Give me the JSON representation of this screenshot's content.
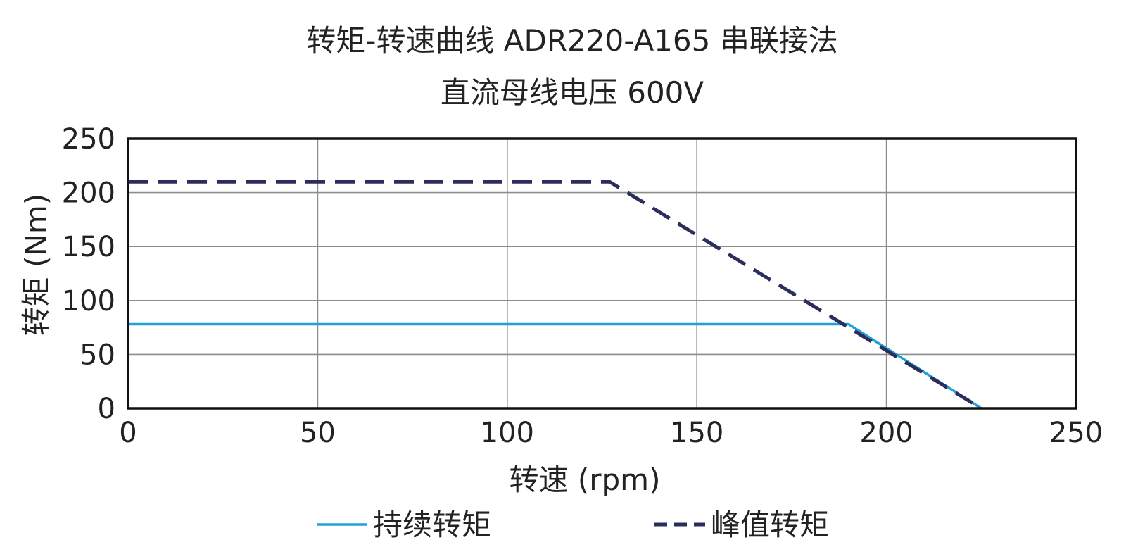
{
  "chart_data": {
    "type": "line",
    "title": "转矩-转速曲线 ADR220-A165 串联接法",
    "subtitle": "直流母线电压 600V",
    "xlabel": "转速 (rpm)",
    "ylabel": "转矩 (Nm)",
    "xlim": [
      0,
      250
    ],
    "ylim": [
      0,
      250
    ],
    "x_ticks": [
      0,
      50,
      100,
      150,
      200,
      250
    ],
    "y_ticks": [
      0,
      50,
      100,
      150,
      200,
      250
    ],
    "x_tick_labels": [
      "0",
      "50",
      "100",
      "150",
      "200",
      "250"
    ],
    "y_tick_labels": [
      "0",
      "50",
      "100",
      "150",
      "200",
      "250"
    ],
    "grid": true,
    "legend_position": "bottom",
    "series": [
      {
        "name": "持续转矩",
        "color": "#1fa3d6",
        "style": "solid",
        "x": [
          0,
          190,
          225
        ],
        "y": [
          78,
          78,
          0
        ]
      },
      {
        "name": "峰值转矩",
        "color": "#2b2d5c",
        "style": "dashed",
        "x": [
          0,
          127,
          225
        ],
        "y": [
          210,
          210,
          0
        ]
      }
    ]
  }
}
